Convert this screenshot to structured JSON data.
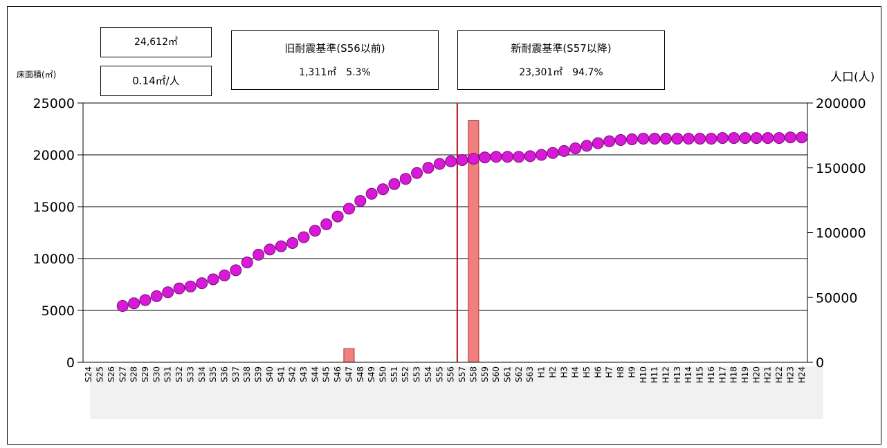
{
  "summary": {
    "total_area": "24,612㎡",
    "per_person": "0.14㎡/人",
    "old_standard_title": "旧耐震基準(S56以前)",
    "old_standard_value": "1,311㎡　5.3%",
    "new_standard_title": "新耐震基準(S57以降)",
    "new_standard_value": "23,301㎡　94.7%"
  },
  "chart_data": {
    "type": "bar",
    "ylabel_left": "床面積(㎡)",
    "ylabel_right": "人口(人)",
    "ylim_left": [
      0,
      25000
    ],
    "yticks_left": [
      "0",
      "5000",
      "10000",
      "15000",
      "20000",
      "25000"
    ],
    "ylim_right": [
      0,
      200000
    ],
    "yticks_right": [
      "0",
      "50000",
      "100000",
      "150000",
      "200000"
    ],
    "grid": true,
    "categories": [
      "S24",
      "S25",
      "S26",
      "S27",
      "S28",
      "S29",
      "S30",
      "S31",
      "S32",
      "S33",
      "S34",
      "S35",
      "S36",
      "S37",
      "S38",
      "S39",
      "S40",
      "S41",
      "S42",
      "S43",
      "S44",
      "S45",
      "S46",
      "S47",
      "S48",
      "S49",
      "S50",
      "S51",
      "S52",
      "S53",
      "S54",
      "S55",
      "S56",
      "S57",
      "S58",
      "S59",
      "S60",
      "S61",
      "S62",
      "S63",
      "H1",
      "H2",
      "H3",
      "H4",
      "H5",
      "H6",
      "H7",
      "H8",
      "H9",
      "H10",
      "H11",
      "H12",
      "H13",
      "H14",
      "H15",
      "H16",
      "H17",
      "H18",
      "H19",
      "H20",
      "H21",
      "H22",
      "H23",
      "H24"
    ],
    "bars": [
      0,
      0,
      0,
      0,
      0,
      0,
      0,
      0,
      0,
      0,
      0,
      0,
      0,
      0,
      0,
      0,
      0,
      0,
      0,
      0,
      0,
      0,
      0,
      1311,
      0,
      0,
      0,
      0,
      0,
      0,
      0,
      0,
      0,
      0,
      23301,
      0,
      0,
      0,
      0,
      0,
      0,
      0,
      0,
      0,
      0,
      0,
      0,
      0,
      0,
      0,
      0,
      0,
      0,
      0,
      0,
      0,
      0,
      0,
      0,
      0,
      0,
      0,
      0,
      0
    ],
    "population": [
      null,
      null,
      null,
      43500,
      45500,
      48000,
      51000,
      54000,
      57000,
      58500,
      61000,
      64000,
      67000,
      71000,
      77000,
      83000,
      87000,
      89500,
      92000,
      96500,
      101500,
      106500,
      112500,
      118500,
      124500,
      130000,
      133500,
      137500,
      141500,
      146000,
      150000,
      153000,
      155000,
      156000,
      157000,
      158000,
      158500,
      158500,
      158500,
      159000,
      160000,
      161500,
      163000,
      165000,
      167000,
      169000,
      170500,
      171500,
      172000,
      172500,
      172500,
      172500,
      172500,
      172500,
      172500,
      172500,
      173000,
      173000,
      173000,
      173000,
      173000,
      173000,
      173500,
      173500
    ],
    "divider_between": [
      "S56",
      "S57"
    ],
    "colors": {
      "bar": "#f07f7f",
      "bar_edge": "#b03030",
      "marker": "#d81ad8",
      "marker_edge": "#7a0a7a",
      "divider": "#b01010"
    }
  }
}
